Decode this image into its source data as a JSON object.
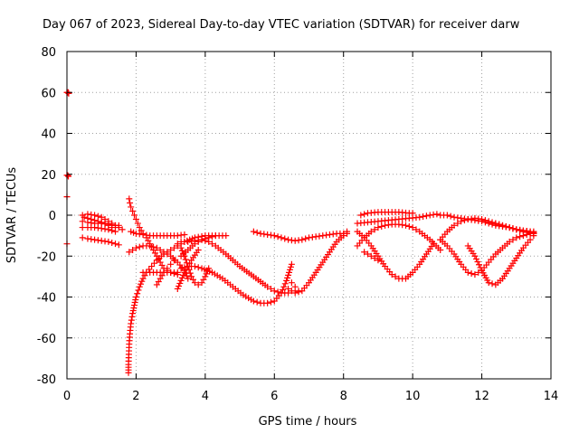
{
  "chart_data": {
    "type": "scatter",
    "title": "Day 067 of 2023, Sidereal Day-to-day VTEC variation (SDTVAR) for receiver darw",
    "xlabel": "GPS time / hours",
    "ylabel": "SDTVAR / TECUs",
    "xlim": [
      0,
      14
    ],
    "ylim": [
      -80,
      80
    ],
    "xticks": [
      "0",
      "2",
      "4",
      "6",
      "8",
      "10",
      "12",
      "14"
    ],
    "yticks": [
      "80",
      "60",
      "40",
      "20",
      "0",
      "-20",
      "-40",
      "-60",
      "-80"
    ],
    "grid": true,
    "marker": "+",
    "color": "#ff0000",
    "series": [
      {
        "name": "s01",
        "x": [
          0.0,
          0.02,
          0.04,
          0.05
        ],
        "y": [
          60,
          60,
          60,
          59.5
        ]
      },
      {
        "name": "s02",
        "x": [
          0.0,
          0.02,
          0.04
        ],
        "y": [
          19.5,
          19.5,
          19
        ]
      },
      {
        "name": "s03",
        "x": [
          0.0
        ],
        "y": [
          9
        ]
      },
      {
        "name": "s04",
        "x": [
          0.0
        ],
        "y": [
          -14
        ]
      },
      {
        "name": "s05",
        "x": [
          0.45,
          0.6,
          0.8,
          1.0,
          1.2,
          1.4,
          1.6
        ],
        "y": [
          0,
          0.5,
          0,
          -1,
          -3,
          -5,
          -7
        ]
      },
      {
        "name": "s06",
        "x": [
          0.45,
          0.6,
          0.8,
          1.0,
          1.2,
          1.4,
          1.5
        ],
        "y": [
          -3,
          -3.5,
          -4,
          -4,
          -4.5,
          -5,
          -5
        ]
      },
      {
        "name": "s07",
        "x": [
          0.45,
          0.6,
          0.8,
          1.0,
          1.2,
          1.4
        ],
        "y": [
          -6,
          -6,
          -6,
          -6.5,
          -7,
          -8
        ]
      },
      {
        "name": "s08",
        "x": [
          0.45,
          0.6,
          0.8,
          1.0,
          1.2,
          1.4,
          1.5
        ],
        "y": [
          -11,
          -11.5,
          -12,
          -12.5,
          -13,
          -14,
          -14.5
        ]
      },
      {
        "name": "s09",
        "x": [
          0.5,
          0.7,
          0.9,
          1.1,
          1.3
        ],
        "y": [
          -1,
          -2,
          -3,
          -4,
          -6
        ]
      },
      {
        "name": "s10",
        "x": [
          1.78,
          1.78,
          1.79,
          1.8,
          1.82,
          1.85,
          1.9,
          1.95,
          2.0,
          2.1,
          2.2,
          2.3,
          2.45,
          2.6,
          2.8,
          3.0,
          3.2,
          3.4,
          3.7,
          4.0,
          4.3,
          4.6
        ],
        "y": [
          -77,
          -73,
          -68,
          -63,
          -58,
          -53,
          -48,
          -44,
          -40,
          -35,
          -31,
          -28,
          -25,
          -22,
          -19,
          -17,
          -15,
          -13,
          -11,
          -10,
          -10,
          -10
        ]
      },
      {
        "name": "s11",
        "x": [
          1.8,
          1.82,
          1.85,
          1.9,
          1.95,
          2.0,
          2.05,
          2.1,
          2.2,
          2.3,
          2.4,
          2.5,
          2.6,
          2.7,
          2.8,
          3.0,
          3.2
        ],
        "y": [
          8,
          6,
          4,
          2,
          0,
          -2,
          -4,
          -6,
          -9,
          -11,
          -14,
          -17,
          -20,
          -23,
          -26,
          -28,
          -29
        ]
      },
      {
        "name": "s12",
        "x": [
          1.8,
          1.9,
          2.0,
          2.2,
          2.4,
          2.6,
          2.8,
          3.0,
          3.2,
          3.4,
          3.5
        ],
        "y": [
          -18,
          -17,
          -16,
          -15,
          -15,
          -16,
          -18,
          -20,
          -23,
          -27,
          -31
        ]
      },
      {
        "name": "s13",
        "x": [
          1.85,
          2.0,
          2.2,
          2.4,
          2.6,
          2.8,
          3.0,
          3.2,
          3.4
        ],
        "y": [
          -8,
          -9,
          -9.5,
          -10,
          -10,
          -10,
          -10,
          -10,
          -9.5
        ]
      },
      {
        "name": "s14",
        "x": [
          2.2,
          2.4,
          2.6,
          2.8,
          3.0,
          3.2
        ],
        "y": [
          -28,
          -28,
          -28,
          -28,
          -28,
          -28
        ]
      },
      {
        "name": "s15",
        "x": [
          2.6,
          2.7,
          2.8,
          2.9,
          3.0,
          3.1
        ],
        "y": [
          -34,
          -31,
          -28,
          -26,
          -24,
          -22
        ]
      },
      {
        "name": "s16",
        "x": [
          3.3,
          3.5,
          3.7,
          3.9,
          4.1,
          4.3,
          4.6,
          5.0,
          5.4,
          5.8,
          6.0,
          6.2,
          6.4
        ],
        "y": [
          -20,
          -17,
          -14,
          -12,
          -13,
          -15,
          -19,
          -25,
          -30,
          -35,
          -37,
          -38,
          -38
        ]
      },
      {
        "name": "s17",
        "x": [
          3.3,
          3.5,
          3.7,
          3.9,
          4.2,
          4.5,
          4.8,
          5.1,
          5.4,
          5.6,
          5.8,
          6.0,
          6.2,
          6.35,
          6.5
        ],
        "y": [
          -26,
          -25,
          -25,
          -26,
          -28,
          -31,
          -35,
          -39,
          -42,
          -43,
          -43,
          -42,
          -38,
          -32,
          -24
        ]
      },
      {
        "name": "s18",
        "x": [
          3.2,
          3.3,
          3.4,
          3.5,
          3.6,
          3.7,
          3.8,
          3.9,
          4.0,
          4.1
        ],
        "y": [
          -14,
          -16,
          -20,
          -25,
          -30,
          -33,
          -34,
          -33,
          -30,
          -26
        ]
      },
      {
        "name": "s19",
        "x": [
          3.2,
          3.3,
          3.4,
          3.5,
          3.6,
          3.8
        ],
        "y": [
          -36,
          -32,
          -28,
          -25,
          -22,
          -17
        ]
      },
      {
        "name": "s20",
        "x": [
          3.3,
          3.5,
          3.7,
          3.9,
          4.1,
          4.3
        ],
        "y": [
          -13,
          -13,
          -12.5,
          -12,
          -11,
          -10
        ]
      },
      {
        "name": "s21",
        "x": [
          5.4,
          5.6,
          5.8,
          6.0,
          6.2,
          6.4,
          6.6,
          6.8,
          7.0,
          7.2,
          7.4,
          7.6,
          7.8,
          8.0,
          8.1
        ],
        "y": [
          -8,
          -9,
          -9.5,
          -10,
          -11,
          -12,
          -12.5,
          -12,
          -11,
          -10.5,
          -10,
          -9.5,
          -9,
          -9,
          -9
        ]
      },
      {
        "name": "s22",
        "x": [
          6.4,
          6.6,
          6.8,
          7.0,
          7.2,
          7.4,
          7.6,
          7.8,
          8.0,
          8.1
        ],
        "y": [
          -36,
          -38,
          -37,
          -33,
          -28,
          -23,
          -18,
          -13,
          -10,
          -8
        ]
      },
      {
        "name": "s23",
        "x": [
          6.5,
          6.6,
          6.7
        ],
        "y": [
          -33,
          -35,
          -37
        ]
      },
      {
        "name": "s24",
        "x": [
          8.5,
          8.7,
          9.0,
          9.3,
          9.6,
          9.9,
          10.0
        ],
        "y": [
          0,
          1,
          1.5,
          1.5,
          1.5,
          1,
          1
        ]
      },
      {
        "name": "s25",
        "x": [
          8.4,
          8.7,
          9.0,
          9.3,
          9.6,
          9.9,
          10.2,
          10.5,
          10.7
        ],
        "y": [
          -4,
          -3.5,
          -3,
          -2.5,
          -2,
          -1.5,
          -1,
          0,
          0.5
        ]
      },
      {
        "name": "s26",
        "x": [
          8.4,
          8.6,
          8.8,
          9.0,
          9.2,
          9.4,
          9.6,
          9.8,
          10.0,
          10.2,
          10.5,
          10.8
        ],
        "y": [
          -15,
          -11,
          -8,
          -6,
          -5,
          -4.5,
          -4.5,
          -5,
          -6,
          -8,
          -12,
          -17
        ]
      },
      {
        "name": "s27",
        "x": [
          8.4,
          8.6,
          8.8,
          9.0,
          9.2,
          9.4,
          9.6,
          9.8,
          10.0,
          10.2,
          10.4,
          10.6
        ],
        "y": [
          -8,
          -11,
          -15,
          -20,
          -25,
          -29,
          -31,
          -31,
          -28,
          -24,
          -19,
          -14
        ]
      },
      {
        "name": "s28",
        "x": [
          8.6,
          8.8,
          9.0
        ],
        "y": [
          -18,
          -20,
          -22
        ]
      },
      {
        "name": "s29",
        "x": [
          10.8,
          11.0,
          11.2,
          11.4,
          11.6,
          11.8,
          12.0,
          12.2,
          12.4,
          12.6,
          12.8,
          13.0,
          13.2,
          13.4,
          13.5
        ],
        "y": [
          0,
          0,
          -1,
          -1.5,
          -2,
          -2.5,
          -3,
          -4,
          -5,
          -5.5,
          -6,
          -7,
          -7.5,
          -8,
          -8
        ]
      },
      {
        "name": "s30",
        "x": [
          10.8,
          11.0,
          11.2,
          11.4,
          11.6,
          11.8,
          12.0,
          12.2,
          12.4,
          12.6,
          12.8,
          13.0,
          13.2,
          13.5
        ],
        "y": [
          -12,
          -8,
          -5,
          -3,
          -2,
          -1.5,
          -2,
          -3,
          -4,
          -5,
          -6,
          -7,
          -8,
          -9
        ]
      },
      {
        "name": "s31",
        "x": [
          10.8,
          11.0,
          11.2,
          11.4,
          11.6,
          11.8,
          12.0,
          12.2,
          12.4,
          12.6,
          12.8,
          13.0,
          13.2,
          13.4,
          13.5
        ],
        "y": [
          -12,
          -15,
          -19,
          -24,
          -28,
          -29,
          -27,
          -23,
          -19,
          -16,
          -13,
          -11,
          -10,
          -9,
          -9
        ]
      },
      {
        "name": "s32",
        "x": [
          11.6,
          11.8,
          12.0,
          12.2,
          12.4,
          12.6,
          12.8,
          13.0,
          13.2,
          13.4,
          13.5
        ],
        "y": [
          -15,
          -20,
          -27,
          -33,
          -34,
          -31,
          -26,
          -21,
          -16,
          -12,
          -10
        ]
      },
      {
        "name": "s33",
        "x": [
          12.4,
          12.6,
          12.8,
          13.0,
          13.2,
          13.4,
          13.5
        ],
        "y": [
          -4,
          -5,
          -6,
          -7,
          -7.5,
          -8,
          -8.5
        ]
      }
    ]
  }
}
